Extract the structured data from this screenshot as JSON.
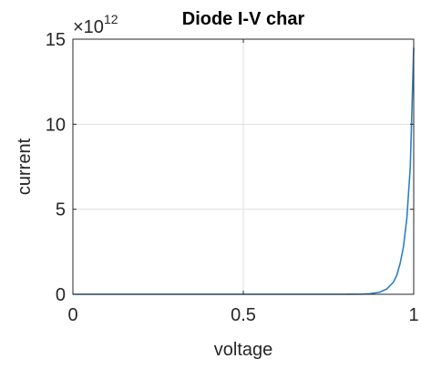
{
  "chart_data": {
    "type": "line",
    "title": "Diode I-V char",
    "xlabel": "voltage",
    "ylabel": "current",
    "xlim": [
      0,
      1
    ],
    "ylim": [
      0,
      15
    ],
    "xticks": [
      0,
      0.5,
      1
    ],
    "xtick_labels": [
      "0",
      "0.5",
      "1"
    ],
    "yticks": [
      0,
      5,
      10,
      15
    ],
    "ytick_labels": [
      "0",
      "5",
      "10",
      "15"
    ],
    "y_multiplier": {
      "base": "×10",
      "exponent": "12"
    },
    "grid": true,
    "series": [
      {
        "color": "#2f7fc1",
        "x": [
          0,
          0.5,
          0.8,
          0.85,
          0.87,
          0.9,
          0.92,
          0.94,
          0.95,
          0.96,
          0.97,
          0.98,
          0.99,
          1.0
        ],
        "y": [
          0,
          0,
          0,
          0.01,
          0.03,
          0.12,
          0.3,
          0.7,
          1.1,
          1.8,
          2.8,
          4.5,
          7.5,
          14.5
        ]
      }
    ]
  }
}
